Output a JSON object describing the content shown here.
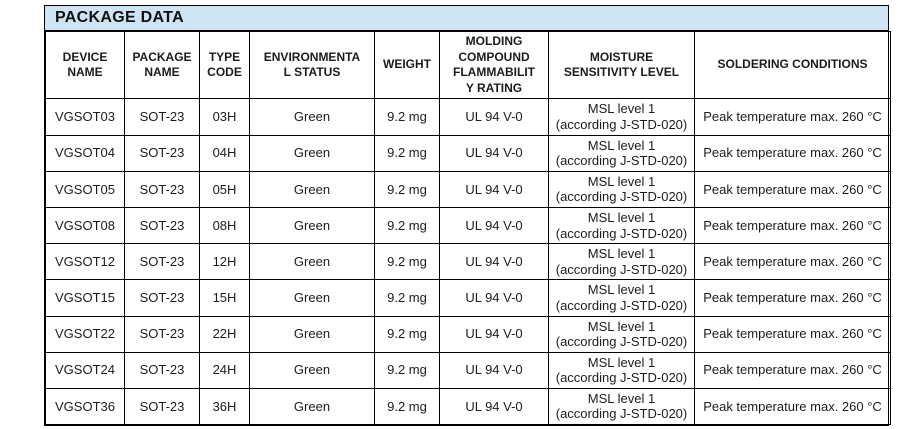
{
  "title": "PACKAGE DATA",
  "theme": {
    "title_bar_background": "#cee4f2",
    "border_color": "#000000",
    "text_color": "#1c1c1c"
  },
  "table": {
    "columns": [
      {
        "id": "device-name",
        "label": "DEVICE\nNAME"
      },
      {
        "id": "package-name",
        "label": "PACKAGE\nNAME"
      },
      {
        "id": "type-code",
        "label": "TYPE\nCODE"
      },
      {
        "id": "environmental-status",
        "label": "ENVIRONMENTA\nL STATUS"
      },
      {
        "id": "weight",
        "label": "WEIGHT"
      },
      {
        "id": "molding-compound-flammability-rating",
        "label": "MOLDING\nCOMPOUND\nFLAMMABILIT\nY RATING"
      },
      {
        "id": "moisture-sensitivity-level",
        "label": "MOISTURE\nSENSITIVITY LEVEL"
      },
      {
        "id": "soldering-conditions",
        "label": "SOLDERING CONDITIONS"
      }
    ],
    "rows": [
      {
        "cells": [
          "VGSOT03",
          "SOT-23",
          "03H",
          "Green",
          "9.2 mg",
          "UL 94 V-0",
          "MSL level 1\n(according J-STD-020)",
          "Peak temperature max. 260 °C"
        ]
      },
      {
        "cells": [
          "VGSOT04",
          "SOT-23",
          "04H",
          "Green",
          "9.2 mg",
          "UL 94 V-0",
          "MSL level 1\n(according J-STD-020)",
          "Peak temperature max. 260 °C"
        ]
      },
      {
        "cells": [
          "VGSOT05",
          "SOT-23",
          "05H",
          "Green",
          "9.2 mg",
          "UL 94 V-0",
          "MSL level 1\n(according J-STD-020)",
          "Peak temperature max. 260 °C"
        ]
      },
      {
        "cells": [
          "VGSOT08",
          "SOT-23",
          "08H",
          "Green",
          "9.2 mg",
          "UL 94 V-0",
          "MSL level 1\n(according J-STD-020)",
          "Peak temperature max. 260 °C"
        ]
      },
      {
        "cells": [
          "VGSOT12",
          "SOT-23",
          "12H",
          "Green",
          "9.2 mg",
          "UL 94 V-0",
          "MSL level 1\n(according J-STD-020)",
          "Peak temperature max. 260 °C"
        ]
      },
      {
        "cells": [
          "VGSOT15",
          "SOT-23",
          "15H",
          "Green",
          "9.2 mg",
          "UL 94 V-0",
          "MSL level 1\n(according J-STD-020)",
          "Peak temperature max. 260 °C"
        ]
      },
      {
        "cells": [
          "VGSOT22",
          "SOT-23",
          "22H",
          "Green",
          "9.2 mg",
          "UL 94 V-0",
          "MSL level 1\n(according J-STD-020)",
          "Peak temperature max. 260 °C"
        ]
      },
      {
        "cells": [
          "VGSOT24",
          "SOT-23",
          "24H",
          "Green",
          "9.2 mg",
          "UL 94 V-0",
          "MSL level 1\n(according J-STD-020)",
          "Peak temperature max. 260 °C"
        ]
      },
      {
        "cells": [
          "VGSOT36",
          "SOT-23",
          "36H",
          "Green",
          "9.2 mg",
          "UL 94 V-0",
          "MSL level 1\n(according J-STD-020)",
          "Peak temperature max. 260 °C"
        ]
      }
    ]
  }
}
